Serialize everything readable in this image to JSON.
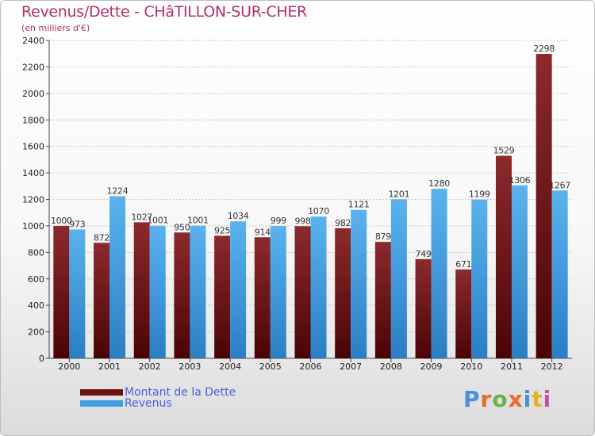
{
  "title": "Revenus/Dette - CHâTILLON-SUR-CHER",
  "subtitle": "(en milliers d'€)",
  "chart_data": {
    "type": "bar",
    "title": "Revenus/Dette - CHâTILLON-SUR-CHER",
    "subtitle": "(en milliers d'€)",
    "categories": [
      "2000",
      "2001",
      "2002",
      "2003",
      "2004",
      "2005",
      "2006",
      "2007",
      "2008",
      "2009",
      "2010",
      "2011",
      "2012"
    ],
    "series": [
      {
        "name": "Montant de la Dette",
        "color": "#6e0f12",
        "values": [
          1000,
          872,
          1027,
          950,
          925,
          914,
          998,
          982,
          879,
          749,
          671,
          1529,
          2298
        ]
      },
      {
        "name": "Revenus",
        "color": "#3f9fe2",
        "values": [
          973,
          1224,
          1001,
          1001,
          1034,
          999,
          1070,
          1121,
          1201,
          1280,
          1199,
          1306,
          1267
        ]
      }
    ],
    "ylim": [
      0,
      2400
    ],
    "yticks": [
      0,
      200,
      400,
      600,
      800,
      1000,
      1200,
      1400,
      1600,
      1800,
      2000,
      2200,
      2400
    ],
    "grid": true,
    "legend_position": "bottom-left"
  },
  "legend": {
    "items": [
      {
        "label": "Montant de la Dette",
        "color": "#6e0f12"
      },
      {
        "label": "Revenus",
        "color": "#3f9fe2"
      }
    ]
  },
  "logo": {
    "text": "Proxiti",
    "colors": [
      "#4a8fd8",
      "#e86a2c",
      "#6ab04c",
      "#e86a2c",
      "#4a8fd8",
      "#e8b020",
      "#c94f9a"
    ]
  }
}
